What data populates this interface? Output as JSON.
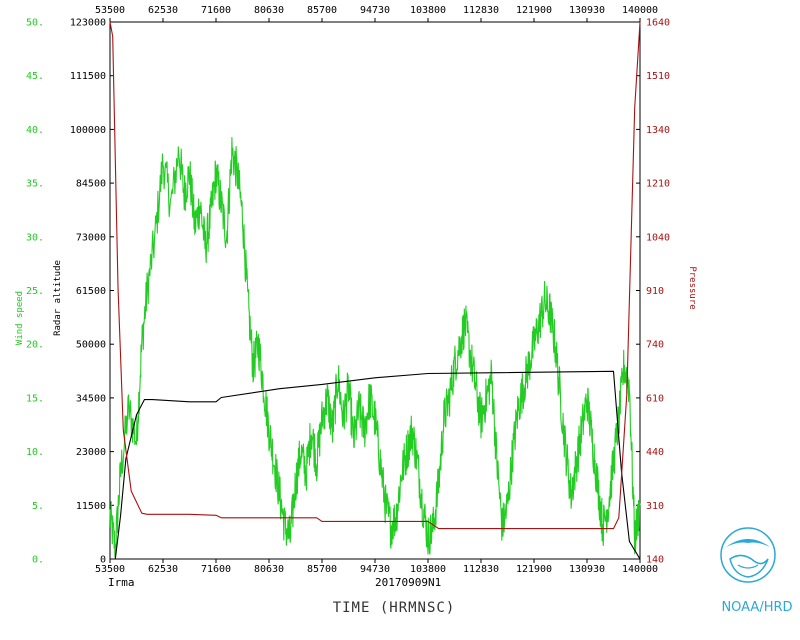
{
  "chart_data": {
    "type": "line",
    "storm_name": "Irma",
    "storm_id": "20170909N1",
    "xlabel": "TIME (HRMNSC)",
    "x_ticks": [
      53500,
      62530,
      71600,
      80630,
      85700,
      94730,
      103800,
      112830,
      121900,
      130930,
      140000
    ],
    "x_ticks_top": [
      53500,
      62530,
      71600,
      80630,
      85700,
      94730,
      103800,
      112830,
      121900,
      130930,
      140000
    ],
    "x_ticks_bottom": [
      53500,
      62530,
      71600,
      80630,
      85700,
      94730,
      103800,
      112830,
      121900,
      130930,
      140000
    ],
    "axes": {
      "wind": {
        "label": "Wind speed",
        "ylim": [
          0,
          50
        ],
        "ticks": [
          "0.",
          "5.",
          "10.",
          "15.",
          "20.",
          "25.",
          "30.",
          "35.",
          "40.",
          "45.",
          "50."
        ],
        "color": "#22cc22"
      },
      "altitude": {
        "label": "Radar altitude",
        "ylim": [
          0,
          123000
        ],
        "ticks": [
          0,
          11500,
          23000,
          34500,
          50000,
          61500,
          73000,
          84500,
          100000,
          111500,
          123000
        ],
        "color": "#000000"
      },
      "pressure": {
        "label": "Pressure",
        "ylim": [
          140,
          1640
        ],
        "ticks": [
          140,
          310,
          440,
          610,
          740,
          910,
          1040,
          1210,
          1340,
          1510,
          1640
        ],
        "color": "#aa1111"
      }
    },
    "series": [
      {
        "name": "Wind speed",
        "axis": "wind",
        "color": "#22cc22",
        "x": [
          0.0,
          0.01,
          0.02,
          0.035,
          0.05,
          0.06,
          0.07,
          0.085,
          0.1,
          0.115,
          0.13,
          0.14,
          0.15,
          0.16,
          0.17,
          0.18,
          0.19,
          0.2,
          0.21,
          0.22,
          0.23,
          0.24,
          0.25,
          0.26,
          0.27,
          0.28,
          0.29,
          0.3,
          0.31,
          0.32,
          0.33,
          0.34,
          0.35,
          0.36,
          0.37,
          0.38,
          0.39,
          0.4,
          0.41,
          0.42,
          0.43,
          0.44,
          0.45,
          0.46,
          0.47,
          0.48,
          0.49,
          0.5,
          0.51,
          0.52,
          0.53,
          0.54,
          0.55,
          0.56,
          0.57,
          0.58,
          0.59,
          0.6,
          0.61,
          0.62,
          0.63,
          0.64,
          0.65,
          0.66,
          0.67,
          0.68,
          0.69,
          0.7,
          0.71,
          0.72,
          0.73,
          0.74,
          0.75,
          0.76,
          0.77,
          0.78,
          0.79,
          0.8,
          0.81,
          0.82,
          0.83,
          0.84,
          0.85,
          0.86,
          0.87,
          0.88,
          0.89,
          0.9,
          0.91,
          0.92,
          0.93,
          0.94,
          0.95,
          0.96,
          0.97,
          0.98,
          0.99,
          1.0
        ],
        "values": [
          4,
          1,
          8,
          14,
          11,
          20,
          25,
          30,
          37,
          33,
          38,
          34,
          36,
          31,
          33,
          29,
          32,
          36,
          33,
          30,
          38,
          36,
          32,
          24,
          18,
          20,
          16,
          12,
          9,
          6,
          3,
          2,
          7,
          10,
          8,
          12,
          9,
          13,
          15,
          12,
          17,
          13,
          16,
          11,
          14,
          12,
          15,
          13,
          9,
          5,
          3,
          4,
          8,
          10,
          12,
          9,
          5,
          2,
          3,
          7,
          13,
          15,
          18,
          20,
          22,
          19,
          16,
          13,
          15,
          17,
          9,
          3,
          5,
          10,
          14,
          16,
          18,
          20,
          22,
          24,
          23,
          20,
          15,
          10,
          6,
          9,
          12,
          15,
          11,
          7,
          3,
          5,
          9,
          13,
          18,
          16,
          2,
          5
        ]
      },
      {
        "name": "Radar altitude",
        "axis": "altitude",
        "color": "#000000",
        "x": [
          0.0,
          0.01,
          0.02,
          0.03,
          0.05,
          0.065,
          0.08,
          0.15,
          0.2,
          0.21,
          0.32,
          0.4,
          0.5,
          0.6,
          0.95,
          0.965,
          0.98,
          1.0
        ],
        "values": [
          0,
          0,
          10000,
          23000,
          33000,
          36500,
          36500,
          36000,
          36000,
          37000,
          39000,
          40000,
          41500,
          42500,
          43000,
          20000,
          4000,
          0
        ]
      },
      {
        "name": "Pressure",
        "axis": "pressure",
        "color": "#aa1111",
        "x": [
          0.0,
          0.005,
          0.015,
          0.025,
          0.04,
          0.06,
          0.07,
          0.15,
          0.2,
          0.21,
          0.39,
          0.4,
          0.5,
          0.6,
          0.62,
          0.78,
          0.95,
          0.96,
          0.975,
          0.99,
          1.0
        ],
        "values": [
          1640,
          1600,
          900,
          500,
          330,
          268,
          265,
          265,
          262,
          255,
          255,
          245,
          245,
          245,
          225,
          225,
          225,
          255,
          600,
          1400,
          1640
        ]
      }
    ]
  },
  "logo": {
    "text": "NOAA/HRD",
    "color": "#2aa8d8"
  }
}
